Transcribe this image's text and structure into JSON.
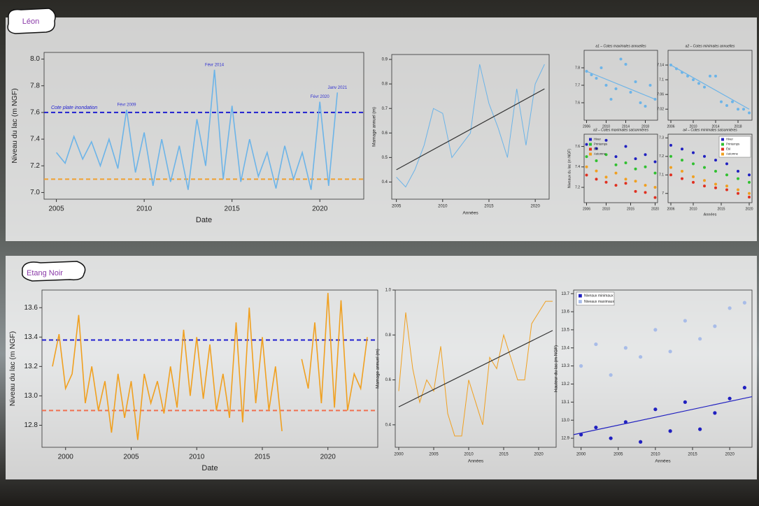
{
  "sections": [
    {
      "label": "Léon"
    },
    {
      "label": "Etang Noir"
    }
  ],
  "chart_data": [
    {
      "type": "line",
      "xlabel": "Date",
      "ylabel": "Niveau du lac (m NGF)",
      "x": [
        2005,
        2005.5,
        2006,
        2006.5,
        2007,
        2007.5,
        2008,
        2008.5,
        2009,
        2009.5,
        2010,
        2010.5,
        2011,
        2011.5,
        2012,
        2012.5,
        2013,
        2013.5,
        2014,
        2014.5,
        2015,
        2015.5,
        2016,
        2016.5,
        2017,
        2017.5,
        2018,
        2018.5,
        2019,
        2019.5,
        2020,
        2020.5,
        2021
      ],
      "series": [
        {
          "color": "#6cb4e8",
          "values": [
            7.3,
            7.22,
            7.42,
            7.25,
            7.38,
            7.2,
            7.4,
            7.18,
            7.62,
            7.15,
            7.45,
            7.05,
            7.4,
            7.08,
            7.35,
            7.02,
            7.55,
            7.2,
            7.92,
            7.1,
            7.65,
            7.08,
            7.4,
            7.12,
            7.3,
            7.03,
            7.35,
            7.1,
            7.3,
            7.02,
            7.68,
            7.05,
            7.75
          ]
        }
      ],
      "xlim": [
        2004.3,
        2022.5
      ],
      "xticks": [
        2005,
        2010,
        2015,
        2020
      ],
      "ylim": [
        6.95,
        8.05
      ],
      "yticks": [
        {
          "value": 7,
          "label": "7.0"
        },
        7.2,
        7.4,
        7.6,
        7.8,
        {
          "value": 8,
          "label": "8.0"
        }
      ],
      "hlines": [
        {
          "value": 7.6,
          "color": "#2020d0",
          "label": "Cote plate inondation"
        },
        {
          "value": 7.1,
          "color": "#f0a030"
        }
      ],
      "annotations": [
        {
          "text": "Févr 2009",
          "x": 2009,
          "y": 7.62
        },
        {
          "text": "Févr 2014",
          "x": 2014,
          "y": 7.92
        },
        {
          "text": "Févr 2020",
          "x": 2020,
          "y": 7.68
        },
        {
          "text": "Janv 2021",
          "x": 2021,
          "y": 7.75
        }
      ]
    },
    {
      "type": "line",
      "xlabel": "Années",
      "ylabel": "Marnage annuel (m)",
      "x": [
        2005,
        2006,
        2007,
        2008,
        2009,
        2010,
        2011,
        2012,
        2013,
        2014,
        2015,
        2016,
        2017,
        2018,
        2019,
        2020,
        2021
      ],
      "series": [
        {
          "color": "#6cb4e8",
          "values": [
            0.42,
            0.38,
            0.45,
            0.55,
            0.7,
            0.68,
            0.5,
            0.55,
            0.6,
            0.88,
            0.72,
            0.62,
            0.5,
            0.78,
            0.55,
            0.8,
            0.88
          ]
        }
      ],
      "xlim": [
        2004.5,
        2021.5
      ],
      "xticks": [
        2005,
        2010,
        2015,
        2020
      ],
      "ylim": [
        0.33,
        0.92
      ],
      "yticks": [
        0.4,
        0.5,
        0.6,
        0.7,
        0.8,
        0.9
      ],
      "trend": {
        "color": "#333333",
        "x": [
          2005,
          2021
        ],
        "values": [
          0.45,
          0.78
        ]
      }
    },
    {
      "type": "scatter",
      "title": "a1 – Cotes maximales annuelles",
      "x": [
        2006,
        2007,
        2008,
        2009,
        2010,
        2011,
        2012,
        2013,
        2014,
        2015,
        2016,
        2017,
        2018,
        2019,
        2020
      ],
      "series": [
        {
          "color": "#6cb4e8",
          "values": [
            7.78,
            7.76,
            7.74,
            7.8,
            7.7,
            7.62,
            7.68,
            7.85,
            7.82,
            7.66,
            7.72,
            7.6,
            7.58,
            7.7,
            7.62
          ]
        }
      ],
      "xlim": [
        2005.5,
        2020.5
      ],
      "xticks": [
        2006,
        2010,
        2014,
        2018
      ],
      "ylim": [
        7.5,
        7.9
      ],
      "yticks": [
        7.6,
        7.7,
        7.8
      ],
      "trend": {
        "color": "#6cb4e8",
        "x": [
          2006,
          2020
        ],
        "values": [
          7.78,
          7.62
        ]
      }
    },
    {
      "type": "scatter",
      "title": "a2 – Cotes minimales annuelles",
      "x": [
        2006,
        2007,
        2008,
        2009,
        2010,
        2011,
        2012,
        2013,
        2014,
        2015,
        2016,
        2017,
        2018,
        2019,
        2020
      ],
      "series": [
        {
          "color": "#6cb4e8",
          "values": [
            7.14,
            7.13,
            7.12,
            7.11,
            7.1,
            7.09,
            7.08,
            7.11,
            7.11,
            7.04,
            7.03,
            7.04,
            7.02,
            7.02,
            7.01
          ]
        }
      ],
      "xlim": [
        2005.5,
        2020.5
      ],
      "xticks": [
        2006,
        2010,
        2014,
        2018
      ],
      "ylim": [
        6.99,
        7.18
      ],
      "yticks": [
        7.02,
        7.06,
        7.1,
        7.14
      ],
      "trend": {
        "color": "#6cb4e8",
        "x": [
          2006,
          2020
        ],
        "values": [
          7.14,
          7.02
        ]
      }
    },
    {
      "type": "scatter",
      "title": "a3 – Cotes maximales saisonnières",
      "ylabel": "Niveaux du lac (m NGF)",
      "x": [
        2006,
        2008,
        2010,
        2012,
        2014,
        2016,
        2018,
        2020
      ],
      "series": [
        {
          "name": "Hiver",
          "color": "#2020c0",
          "values": [
            7.62,
            7.58,
            7.66,
            7.5,
            7.6,
            7.48,
            7.52,
            7.45
          ]
        },
        {
          "name": "Printemps",
          "color": "#30c030",
          "values": [
            7.5,
            7.46,
            7.52,
            7.42,
            7.44,
            7.38,
            7.4,
            7.34
          ]
        },
        {
          "name": "Été",
          "color": "#e03020",
          "values": [
            7.32,
            7.28,
            7.25,
            7.22,
            7.24,
            7.16,
            7.15,
            7.1
          ]
        },
        {
          "name": "Automne",
          "color": "#f0a020",
          "values": [
            7.4,
            7.36,
            7.3,
            7.34,
            7.28,
            7.26,
            7.22,
            7.2
          ]
        }
      ],
      "xlim": [
        2005.5,
        2020.5
      ],
      "xticks": [
        2006,
        2010,
        2015,
        2020
      ],
      "ylim": [
        7.05,
        7.72
      ],
      "yticks": [
        7.2,
        7.4,
        7.6
      ]
    },
    {
      "type": "scatter",
      "title": "a4 – Cotes minimales saisonnières",
      "xlabel": "Années",
      "x": [
        2006,
        2008,
        2010,
        2012,
        2014,
        2016,
        2018,
        2020
      ],
      "series": [
        {
          "name": "Hiver",
          "color": "#2020c0",
          "values": [
            7.26,
            7.24,
            7.22,
            7.2,
            7.18,
            7.16,
            7.12,
            7.1
          ]
        },
        {
          "name": "Printemps",
          "color": "#30c030",
          "values": [
            7.2,
            7.18,
            7.16,
            7.14,
            7.12,
            7.1,
            7.08,
            7.06
          ]
        },
        {
          "name": "Été",
          "color": "#e03020",
          "values": [
            7.1,
            7.08,
            7.06,
            7.04,
            7.03,
            7.02,
            7.0,
            6.98
          ]
        },
        {
          "name": "Automne",
          "color": "#f0a020",
          "values": [
            7.14,
            7.12,
            7.09,
            7.07,
            7.05,
            7.04,
            7.02,
            7.0
          ]
        }
      ],
      "xlim": [
        2005.5,
        2020.5
      ],
      "xticks": [
        2006,
        2010,
        2015,
        2020
      ],
      "ylim": [
        6.95,
        7.32
      ],
      "yticks": [
        7.0,
        7.1,
        7.2,
        7.3
      ],
      "legend": "top-right"
    },
    {
      "type": "line",
      "xlabel": "Date",
      "ylabel": "Niveau du lac (m NGF)",
      "x": [
        1999,
        1999.5,
        2000,
        2000.5,
        2001,
        2001.5,
        2002,
        2002.5,
        2003,
        2003.5,
        2004,
        2004.5,
        2005,
        2005.5,
        2006,
        2006.5,
        2007,
        2007.5,
        2008,
        2008.5,
        2009,
        2009.5,
        2010,
        2010.5,
        2011,
        2011.5,
        2012,
        2012.5,
        2013,
        2013.5,
        2014,
        2014.5,
        2015,
        2015.5,
        2016,
        2016.5,
        2017,
        2017.5,
        2018,
        2018.5,
        2019,
        2019.5,
        2020,
        2020.5,
        2021,
        2021.5,
        2022,
        2022.5,
        2023
      ],
      "series": [
        {
          "color": "#f0a020",
          "values": [
            13.2,
            13.42,
            13.05,
            13.15,
            13.55,
            12.95,
            13.2,
            12.9,
            13.1,
            12.75,
            13.15,
            12.85,
            13.1,
            12.7,
            13.15,
            12.95,
            13.1,
            12.88,
            13.2,
            12.92,
            13.45,
            13.0,
            13.4,
            12.98,
            13.35,
            12.9,
            13.15,
            12.85,
            13.5,
            12.82,
            13.6,
            12.95,
            13.4,
            12.9,
            13.2,
            12.76,
            null,
            null,
            13.25,
            13.05,
            13.5,
            12.95,
            13.7,
            12.92,
            13.65,
            12.9,
            13.15,
            13.05,
            13.4
          ]
        }
      ],
      "xlim": [
        1998.2,
        2023.8
      ],
      "xticks": [
        2000,
        2005,
        2010,
        2015,
        2020
      ],
      "ylim": [
        12.65,
        13.72
      ],
      "yticks": [
        12.8,
        {
          "value": 13,
          "label": "13.0"
        },
        13.2,
        13.4,
        13.6
      ],
      "hlines": [
        {
          "value": 13.38,
          "color": "#2020d0"
        },
        {
          "value": 12.9,
          "color": "#f07050"
        }
      ]
    },
    {
      "type": "line",
      "xlabel": "Années",
      "ylabel": "Marnage annuel (m)",
      "x": [
        2000,
        2001,
        2002,
        2003,
        2004,
        2005,
        2006,
        2007,
        2008,
        2009,
        2010,
        2011,
        2012,
        2013,
        2014,
        2015,
        2016,
        2017,
        2018,
        2019,
        2020,
        2021,
        2022
      ],
      "series": [
        {
          "color": "#f0a020",
          "values": [
            0.55,
            0.9,
            0.65,
            0.5,
            0.6,
            0.55,
            0.75,
            0.45,
            0.35,
            0.35,
            0.6,
            0.5,
            0.4,
            0.7,
            0.65,
            0.8,
            0.7,
            0.6,
            0.6,
            0.85,
            0.9,
            0.95,
            0.95
          ]
        }
      ],
      "xlim": [
        1999.5,
        2022.5
      ],
      "xticks": [
        2000,
        2005,
        2010,
        2015,
        2020
      ],
      "ylim": [
        0.3,
        1.0
      ],
      "yticks": [
        0.4,
        0.6,
        0.8,
        {
          "value": 1,
          "label": "1.0"
        }
      ],
      "trend": {
        "color": "#333333",
        "x": [
          2000,
          2022
        ],
        "values": [
          0.48,
          0.82
        ]
      }
    },
    {
      "type": "scatter",
      "xlabel": "Années",
      "ylabel": "Hauteur du lac (m NGF)",
      "x": [
        2000,
        2002,
        2004,
        2006,
        2008,
        2010,
        2012,
        2014,
        2016,
        2018,
        2020,
        2022
      ],
      "series": [
        {
          "name": "Niveaux minimaux",
          "color": "#2020c0",
          "values": [
            12.92,
            12.96,
            12.9,
            12.99,
            12.88,
            13.06,
            12.94,
            13.1,
            12.95,
            13.04,
            13.12,
            13.18
          ]
        },
        {
          "name": "Niveaux maximaux",
          "color": "#a8bce8",
          "values": [
            13.3,
            13.42,
            13.25,
            13.4,
            13.35,
            13.5,
            13.38,
            13.55,
            13.45,
            13.52,
            13.62,
            13.65
          ]
        }
      ],
      "xlim": [
        1999,
        2023
      ],
      "xticks": [
        2000,
        2005,
        2010,
        2015,
        2020
      ],
      "ylim": [
        12.85,
        13.72
      ],
      "yticks": [
        12.9,
        {
          "value": 13,
          "label": "13.0"
        },
        13.1,
        13.2,
        13.3,
        13.4,
        13.5,
        13.6,
        13.7
      ],
      "trend": {
        "color": "#2020c0",
        "x": [
          1999,
          2023
        ],
        "values": [
          12.92,
          13.13
        ]
      },
      "legend": "top-left"
    }
  ]
}
